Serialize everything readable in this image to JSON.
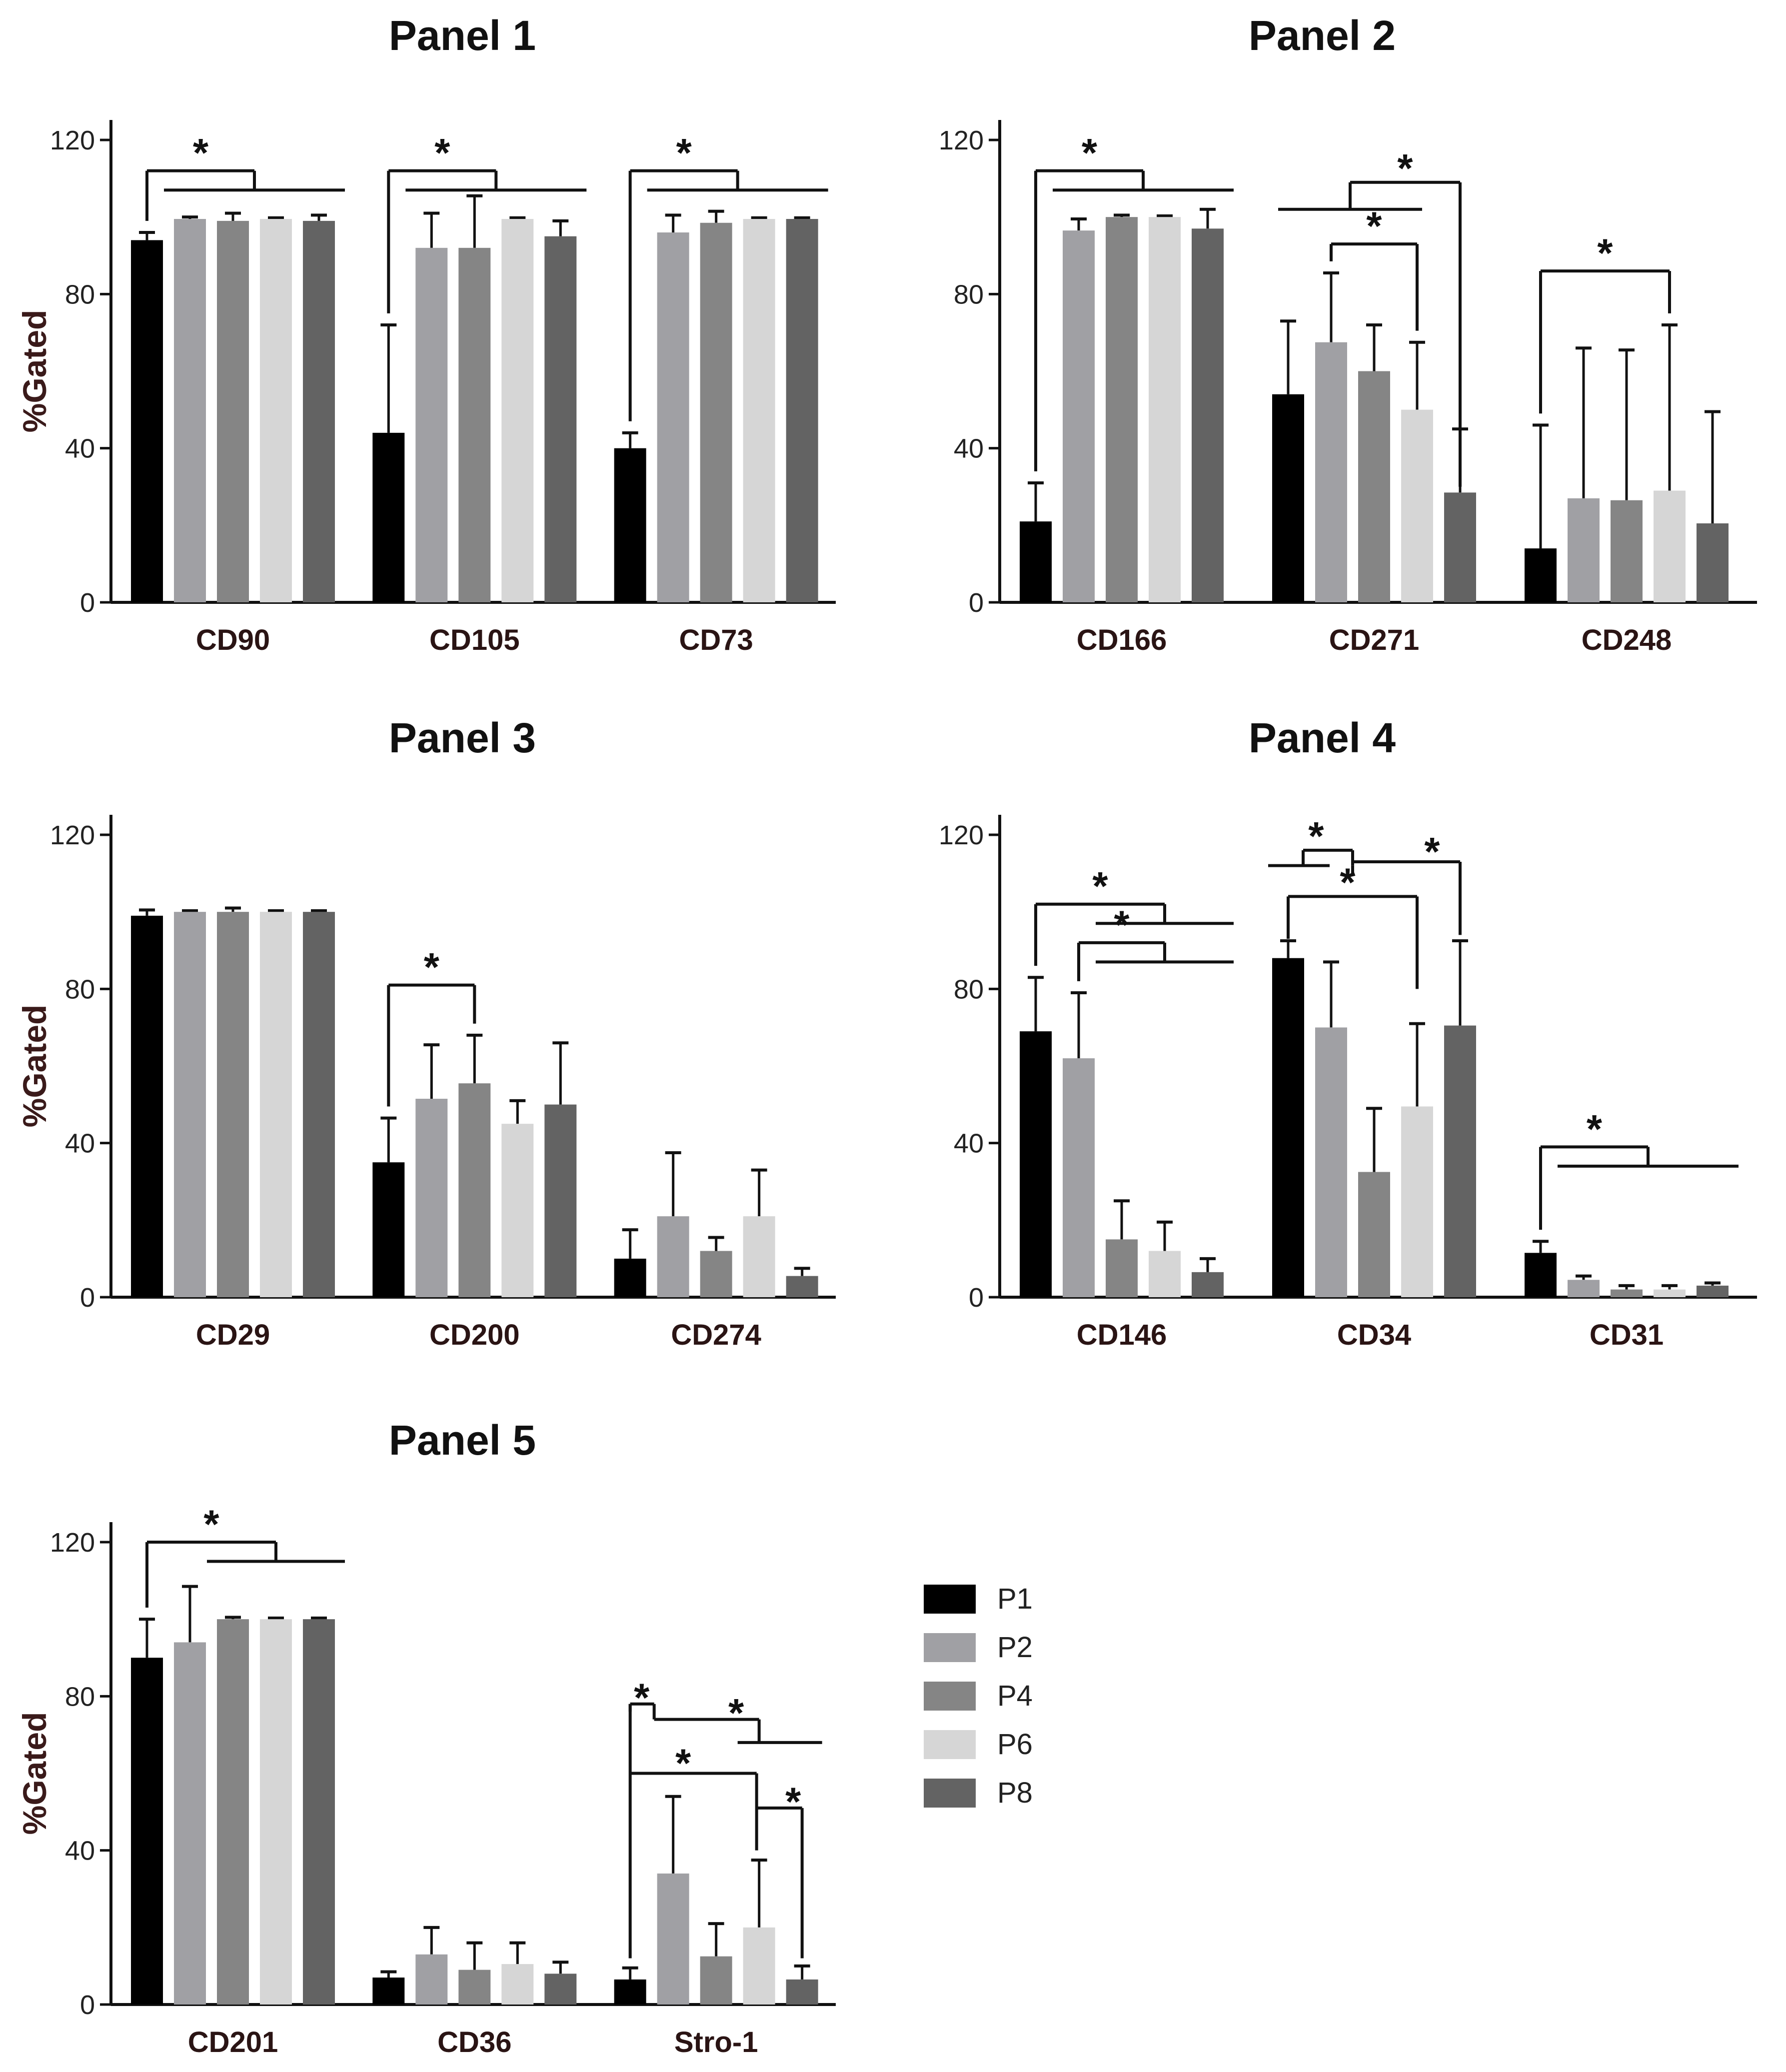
{
  "figure": {
    "series": [
      {
        "name": "P1",
        "color": "#000000"
      },
      {
        "name": "P2",
        "color": "#a0a0a4"
      },
      {
        "name": "P4",
        "color": "#858585"
      },
      {
        "name": "P6",
        "color": "#d6d6d6"
      },
      {
        "name": "P8",
        "color": "#636363"
      }
    ],
    "legend": {
      "position": "right of Panel 5"
    }
  },
  "chart_data": [
    {
      "type": "bar",
      "title": "Panel 1",
      "ylabel": "%Gated",
      "ylim": [
        0,
        120
      ],
      "yticks": [
        0,
        40,
        80,
        120
      ],
      "categories": [
        "CD90",
        "CD105",
        "CD73"
      ],
      "series": [
        {
          "name": "P1",
          "values": [
            94,
            44,
            40
          ],
          "errors": [
            2,
            28,
            4
          ]
        },
        {
          "name": "P2",
          "values": [
            99.5,
            92,
            96
          ],
          "errors": [
            0.5,
            9,
            4.5
          ]
        },
        {
          "name": "P4",
          "values": [
            99,
            92,
            98.5
          ],
          "errors": [
            2,
            13.5,
            3
          ]
        },
        {
          "name": "P6",
          "values": [
            99.5,
            99.5,
            99.5
          ],
          "errors": [
            0.3,
            0.3,
            0.3
          ]
        },
        {
          "name": "P8",
          "values": [
            99,
            95,
            99.5
          ],
          "errors": [
            1.5,
            4,
            0.3
          ]
        }
      ],
      "significance": [
        {
          "label": "*",
          "groups": [
            "CD90 P1",
            "CD90 P2-P8"
          ]
        },
        {
          "label": "*",
          "groups": [
            "CD105 P1",
            "CD105 P2-P8"
          ]
        },
        {
          "label": "*",
          "groups": [
            "CD73 P1",
            "CD73 P2-P8"
          ]
        }
      ]
    },
    {
      "type": "bar",
      "title": "Panel 2",
      "ylabel": "",
      "ylim": [
        0,
        120
      ],
      "yticks": [
        0,
        40,
        80,
        120
      ],
      "categories": [
        "CD166",
        "CD271",
        "CD248"
      ],
      "series": [
        {
          "name": "P1",
          "values": [
            21,
            54,
            14
          ],
          "errors": [
            10,
            19,
            32
          ]
        },
        {
          "name": "P2",
          "values": [
            96.5,
            67.5,
            27
          ],
          "errors": [
            3,
            18,
            39
          ]
        },
        {
          "name": "P4",
          "values": [
            100,
            60,
            26.5
          ],
          "errors": [
            0.5,
            12,
            39
          ]
        },
        {
          "name": "P6",
          "values": [
            100,
            50,
            29
          ],
          "errors": [
            0.3,
            17.5,
            43
          ]
        },
        {
          "name": "P8",
          "values": [
            97,
            28.5,
            20.5
          ],
          "errors": [
            5,
            16.5,
            29
          ]
        }
      ],
      "significance": [
        {
          "label": "*",
          "groups": [
            "CD166 P1",
            "CD166 P2-P8"
          ]
        },
        {
          "label": "*",
          "groups": [
            "CD271 P1-P6",
            "CD271 P8"
          ]
        },
        {
          "label": "*",
          "groups": [
            "CD271 P2",
            "CD271 P6"
          ]
        },
        {
          "label": "*",
          "groups": [
            "CD248 P1",
            "CD248 P6"
          ]
        }
      ]
    },
    {
      "type": "bar",
      "title": "Panel 3",
      "ylabel": "%Gated",
      "ylim": [
        0,
        120
      ],
      "yticks": [
        0,
        40,
        80,
        120
      ],
      "categories": [
        "CD29",
        "CD200",
        "CD274"
      ],
      "series": [
        {
          "name": "P1",
          "values": [
            99,
            35,
            10
          ],
          "errors": [
            1.5,
            11.5,
            7.5
          ]
        },
        {
          "name": "P2",
          "values": [
            100,
            51.5,
            21
          ],
          "errors": [
            0.3,
            14,
            16.5
          ]
        },
        {
          "name": "P4",
          "values": [
            100,
            55.5,
            12
          ],
          "errors": [
            1,
            12.5,
            3.5
          ]
        },
        {
          "name": "P6",
          "values": [
            100,
            45,
            21
          ],
          "errors": [
            0.3,
            6,
            12
          ]
        },
        {
          "name": "P8",
          "values": [
            100,
            50,
            5.5
          ],
          "errors": [
            0.3,
            16,
            2
          ]
        }
      ],
      "significance": [
        {
          "label": "*",
          "groups": [
            "CD200 P1",
            "CD200 P4"
          ]
        }
      ]
    },
    {
      "type": "bar",
      "title": "Panel 4",
      "ylabel": "",
      "ylim": [
        0,
        120
      ],
      "yticks": [
        0,
        40,
        80,
        120
      ],
      "categories": [
        "CD146",
        "CD34",
        "CD31"
      ],
      "series": [
        {
          "name": "P1",
          "values": [
            69,
            88,
            11.5
          ],
          "errors": [
            14,
            4.5,
            3
          ]
        },
        {
          "name": "P2",
          "values": [
            62,
            70,
            4.5
          ],
          "errors": [
            17,
            17,
            1
          ]
        },
        {
          "name": "P4",
          "values": [
            15,
            32.5,
            2
          ],
          "errors": [
            10,
            16.5,
            1
          ]
        },
        {
          "name": "P6",
          "values": [
            12,
            49.5,
            2
          ],
          "errors": [
            7.5,
            21.5,
            1
          ]
        },
        {
          "name": "P8",
          "values": [
            6.5,
            70.5,
            3
          ],
          "errors": [
            3.5,
            22,
            0.7
          ]
        }
      ],
      "significance": [
        {
          "label": "*",
          "groups": [
            "CD146 P1",
            "CD146 P4-P8"
          ]
        },
        {
          "label": "*",
          "groups": [
            "CD146 P2",
            "CD146 P4-P8"
          ]
        },
        {
          "label": "*",
          "groups": [
            "CD34 P1-P2",
            "CD34 P8"
          ]
        },
        {
          "label": "*",
          "groups": [
            "CD34 P1-P2",
            "CD34 P4"
          ]
        },
        {
          "label": "*",
          "groups": [
            "CD34 P1",
            "CD34 P6"
          ]
        },
        {
          "label": "*",
          "groups": [
            "CD31 P1",
            "CD31 P2-P8"
          ]
        }
      ]
    },
    {
      "type": "bar",
      "title": "Panel 5",
      "ylabel": "%Gated",
      "ylim": [
        0,
        120
      ],
      "yticks": [
        0,
        40,
        80,
        120
      ],
      "categories": [
        "CD201",
        "CD36",
        "Stro-1"
      ],
      "series": [
        {
          "name": "P1",
          "values": [
            90,
            7,
            6.5
          ],
          "errors": [
            10,
            1.5,
            3
          ]
        },
        {
          "name": "P2",
          "values": [
            94,
            13,
            34
          ],
          "errors": [
            14.5,
            7,
            20
          ]
        },
        {
          "name": "P4",
          "values": [
            100,
            9,
            12.5
          ],
          "errors": [
            0.5,
            7,
            8.5
          ]
        },
        {
          "name": "P6",
          "values": [
            100,
            10.5,
            20
          ],
          "errors": [
            0.3,
            5.5,
            17.5
          ]
        },
        {
          "name": "P8",
          "values": [
            100,
            8,
            6.5
          ],
          "errors": [
            0.3,
            3,
            3.5
          ]
        }
      ],
      "significance": [
        {
          "label": "*",
          "groups": [
            "Stro-1 P1",
            "Stro-1 P2"
          ]
        },
        {
          "label": "*",
          "groups": [
            "Stro-1 P2",
            "Stro-1 P6-P8"
          ]
        },
        {
          "label": "*",
          "groups": [
            "Stro-1 P1",
            "Stro-1 P6"
          ]
        },
        {
          "label": "*",
          "groups": [
            "Stro-1 P6",
            "Stro-1 P8"
          ]
        },
        {
          "label": "*",
          "groups": [
            "CD201 P1",
            "CD201 P4-P8"
          ]
        }
      ]
    }
  ]
}
